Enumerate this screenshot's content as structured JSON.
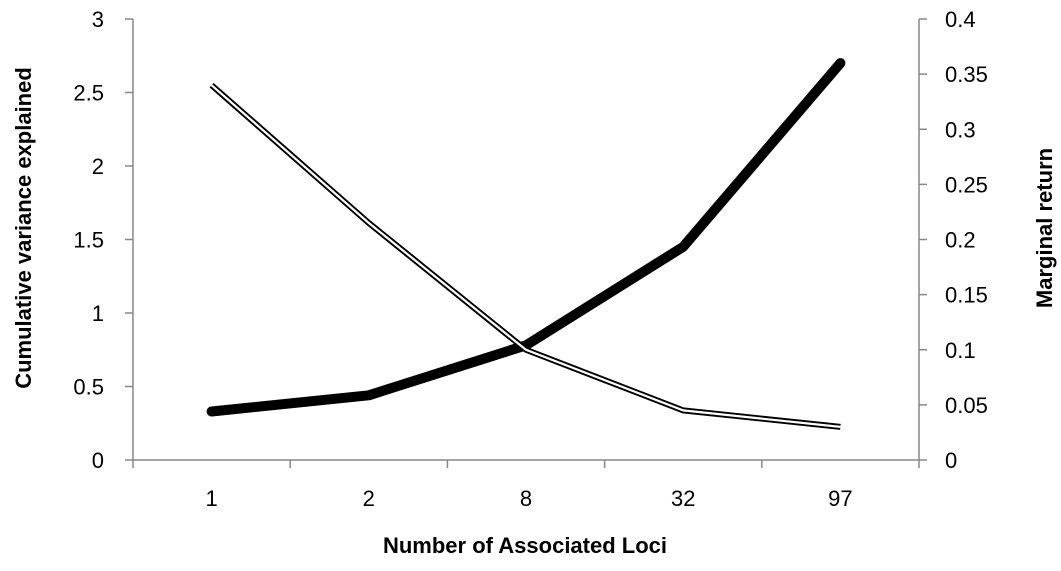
{
  "chart_data": {
    "type": "line",
    "categories": [
      "1",
      "2",
      "8",
      "32",
      "97"
    ],
    "xlabel": "Number of Associated Loci",
    "ylabel": "Cumulative variance explained",
    "y2label": "Marginal return",
    "ylim": [
      0,
      3
    ],
    "y2lim": [
      0,
      0.4
    ],
    "yticks": [
      "0",
      "0.5",
      "1",
      "1.5",
      "2",
      "2.5",
      "3"
    ],
    "y2ticks": [
      "0",
      "0.05",
      "0.1",
      "0.15",
      "0.2",
      "0.25",
      "0.3",
      "0.35",
      "0.4"
    ],
    "series": [
      {
        "axis": "left",
        "style": "thick solid black",
        "values": [
          0.33,
          0.44,
          0.78,
          1.45,
          2.7
        ]
      },
      {
        "axis": "right",
        "style": "double thin black",
        "values": [
          0.34,
          0.215,
          0.1,
          0.045,
          0.03
        ]
      }
    ],
    "grid": false,
    "legend": "none",
    "colors": {
      "line": "#000000",
      "axis": "#878787"
    }
  }
}
